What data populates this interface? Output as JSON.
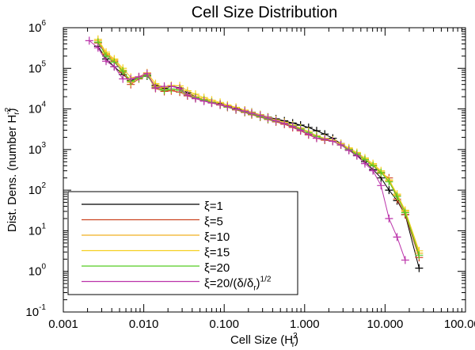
{
  "chart_data": {
    "type": "line",
    "title": "Cell Size Distribution",
    "xlabel": {
      "base": "Cell Size (H",
      "sup": "2",
      "sub": "r",
      "tail": ")"
    },
    "ylabel": {
      "base": "Dist. Dens. (number H",
      "sup": "-2",
      "sub": "r",
      "tail": ")"
    },
    "xscale": "log",
    "yscale": "log",
    "xlim": [
      0.001,
      100
    ],
    "ylim": [
      0.1,
      1000000
    ],
    "x_ticks": [
      {
        "value": 0.001,
        "label": "0.001"
      },
      {
        "value": 0.01,
        "label": "0.010"
      },
      {
        "value": 0.1,
        "label": "0.100"
      },
      {
        "value": 1,
        "label": "1.000"
      },
      {
        "value": 10,
        "label": "10.000"
      },
      {
        "value": 100,
        "label": "100.000"
      }
    ],
    "y_ticks": [
      {
        "value": 0.1,
        "base": "10",
        "exp": "-1"
      },
      {
        "value": 1,
        "base": "10",
        "exp": "0"
      },
      {
        "value": 10,
        "base": "10",
        "exp": "1"
      },
      {
        "value": 100,
        "base": "10",
        "exp": "2"
      },
      {
        "value": 1000,
        "base": "10",
        "exp": "3"
      },
      {
        "value": 10000,
        "base": "10",
        "exp": "4"
      },
      {
        "value": 100000,
        "base": "10",
        "exp": "5"
      },
      {
        "value": 1000000,
        "base": "10",
        "exp": "6"
      }
    ],
    "legend_position": "bottom-left",
    "series": [
      {
        "name": "ξ=1",
        "color": "#000000",
        "x": [
          0.0027,
          0.0034,
          0.0043,
          0.0055,
          0.0069,
          0.0087,
          0.011,
          0.014,
          0.018,
          0.022,
          0.028,
          0.035,
          0.044,
          0.056,
          0.07,
          0.089,
          0.11,
          0.14,
          0.18,
          0.22,
          0.28,
          0.35,
          0.44,
          0.56,
          0.71,
          0.89,
          1.12,
          1.41,
          1.78,
          2.24,
          2.82,
          3.55,
          4.47,
          5.62,
          7.08,
          8.91,
          11.2,
          14.1,
          17.8,
          26.5
        ],
        "y": [
          350000,
          170000,
          110000,
          70000,
          50000,
          60000,
          65000,
          38000,
          32000,
          36000,
          33000,
          25000,
          20000,
          17000,
          15000,
          13500,
          12000,
          10500,
          9300,
          8300,
          7200,
          6300,
          5700,
          5100,
          4500,
          4000,
          3500,
          2900,
          2400,
          1900,
          1400,
          1000,
          720,
          500,
          320,
          200,
          100,
          55,
          25,
          1.2
        ]
      },
      {
        "name": "ξ=5",
        "color": "#cc4422",
        "x": [
          0.0027,
          0.0034,
          0.0043,
          0.0055,
          0.0069,
          0.0087,
          0.011,
          0.014,
          0.018,
          0.022,
          0.028,
          0.035,
          0.044,
          0.056,
          0.07,
          0.089,
          0.11,
          0.14,
          0.18,
          0.22,
          0.28,
          0.35,
          0.44,
          0.56,
          0.71,
          0.89,
          1.12,
          1.41,
          1.78,
          2.24,
          2.82,
          3.55,
          4.47,
          5.62,
          7.08,
          8.91,
          11.2,
          14.1,
          17.8,
          26.5
        ],
        "y": [
          420000,
          220000,
          150000,
          80000,
          40000,
          55000,
          70000,
          32000,
          27000,
          28000,
          26000,
          21000,
          18000,
          16000,
          14000,
          12500,
          11000,
          9500,
          8200,
          7200,
          6300,
          5500,
          4800,
          4200,
          3500,
          2900,
          2300,
          1900,
          1700,
          1600,
          1300,
          1000,
          780,
          560,
          400,
          260,
          200,
          60,
          25,
          2.2
        ]
      },
      {
        "name": "ξ=10",
        "color": "#f0b020",
        "x": [
          0.0027,
          0.0034,
          0.0043,
          0.0055,
          0.0069,
          0.0087,
          0.011,
          0.014,
          0.018,
          0.022,
          0.028,
          0.035,
          0.044,
          0.056,
          0.07,
          0.089,
          0.11,
          0.14,
          0.18,
          0.22,
          0.28,
          0.35,
          0.44,
          0.56,
          0.71,
          0.89,
          1.12,
          1.41,
          1.78,
          2.24,
          2.82,
          3.55,
          4.47,
          5.62,
          7.08,
          8.91,
          11.2,
          14.1,
          17.8,
          26.5
        ],
        "y": [
          480000,
          230000,
          160000,
          90000,
          45000,
          58000,
          75000,
          36000,
          30000,
          30000,
          30000,
          23000,
          20000,
          17000,
          15000,
          13000,
          11500,
          10000,
          8500,
          7500,
          6600,
          5800,
          5000,
          4400,
          3800,
          3200,
          2600,
          2100,
          1800,
          1600,
          1300,
          1050,
          800,
          580,
          420,
          280,
          170,
          75,
          30,
          2.8
        ]
      },
      {
        "name": "ξ=15",
        "color": "#f5d020",
        "x": [
          0.0027,
          0.0034,
          0.0043,
          0.0055,
          0.0069,
          0.0087,
          0.011,
          0.014,
          0.018,
          0.022,
          0.028,
          0.035,
          0.044,
          0.056,
          0.07,
          0.089,
          0.11,
          0.14,
          0.18,
          0.22,
          0.28,
          0.35,
          0.44,
          0.56,
          0.71,
          0.89,
          1.12,
          1.41,
          1.78,
          2.24,
          2.82,
          3.55,
          4.47,
          5.62,
          7.08,
          8.91,
          11.2,
          14.1,
          17.8,
          26.5
        ],
        "y": [
          520000,
          250000,
          170000,
          100000,
          60000,
          62000,
          78000,
          42000,
          34000,
          38000,
          37000,
          28000,
          23000,
          19000,
          16500,
          14500,
          12500,
          11000,
          9400,
          8200,
          7200,
          6200,
          5400,
          4700,
          4000,
          3400,
          2800,
          2200,
          1900,
          1700,
          1400,
          1100,
          850,
          620,
          450,
          300,
          180,
          80,
          32,
          3.2
        ]
      },
      {
        "name": "ξ=20",
        "color": "#55cc22",
        "x": [
          0.0027,
          0.0034,
          0.0043,
          0.0055,
          0.0069,
          0.0087,
          0.011,
          0.014,
          0.018,
          0.022,
          0.028,
          0.035,
          0.044,
          0.056,
          0.07,
          0.089,
          0.11,
          0.14,
          0.18,
          0.22,
          0.28,
          0.35,
          0.44,
          0.56,
          0.71,
          0.89,
          1.12,
          1.41,
          1.78,
          2.24,
          2.82,
          3.55,
          4.47,
          5.62,
          7.08,
          8.91,
          11.2,
          14.1,
          17.8,
          26.5
        ],
        "y": [
          440000,
          200000,
          140000,
          85000,
          48000,
          57000,
          68000,
          34000,
          29000,
          31000,
          29000,
          22000,
          19000,
          16500,
          14500,
          12800,
          11200,
          9800,
          8500,
          7500,
          6500,
          5700,
          5000,
          4400,
          3800,
          3200,
          2600,
          2100,
          1800,
          1600,
          1300,
          1000,
          780,
          560,
          400,
          270,
          160,
          70,
          28,
          2.5
        ]
      },
      {
        "name": "ξ=20/(δ/δr)1/2",
        "color": "#bb33aa",
        "x": [
          0.0021,
          0.0027,
          0.0034,
          0.0043,
          0.0055,
          0.0069,
          0.0087,
          0.011,
          0.014,
          0.018,
          0.022,
          0.028,
          0.035,
          0.044,
          0.056,
          0.07,
          0.089,
          0.11,
          0.14,
          0.18,
          0.22,
          0.28,
          0.35,
          0.44,
          0.56,
          0.71,
          0.89,
          1.12,
          1.41,
          1.78,
          2.24,
          2.82,
          3.55,
          4.47,
          5.62,
          7.08,
          8.91,
          11.2,
          14.1,
          17.8
        ],
        "y": [
          480000,
          320000,
          150000,
          110000,
          55000,
          55000,
          62000,
          75000,
          33000,
          36000,
          36000,
          32000,
          22000,
          18000,
          15500,
          14000,
          12800,
          11500,
          10000,
          8800,
          7800,
          6900,
          6000,
          5100,
          4400,
          3700,
          3000,
          2400,
          1900,
          1800,
          1600,
          1300,
          950,
          700,
          450,
          300,
          130,
          20,
          7,
          1.9
        ]
      }
    ],
    "legend_labels": [
      {
        "pre": "ξ=1"
      },
      {
        "pre": "ξ=5"
      },
      {
        "pre": "ξ=10"
      },
      {
        "pre": "ξ=15"
      },
      {
        "pre": "ξ=20"
      },
      {
        "pre": "ξ=20/(δ/δ",
        "sub": "r",
        "post": ")",
        "sup": "1/2"
      }
    ]
  }
}
